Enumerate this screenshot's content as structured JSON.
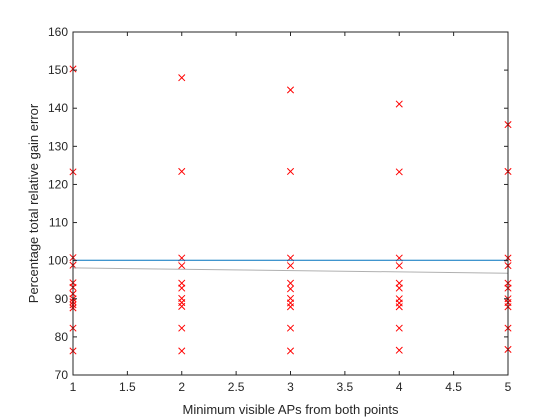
{
  "chart_data": {
    "type": "scatter",
    "title": "",
    "xlabel": "Minimum visible APs from both points",
    "ylabel": "Percentage total relative gain error",
    "xlim": [
      1,
      5
    ],
    "ylim": [
      70,
      160
    ],
    "xticks": [
      1,
      1.5,
      2,
      2.5,
      3,
      3.5,
      4,
      4.5,
      5
    ],
    "xtick_labels": [
      "1",
      "1.5",
      "2",
      "2.5",
      "3",
      "3.5",
      "4",
      "4.5",
      "5"
    ],
    "yticks": [
      70,
      80,
      90,
      100,
      110,
      120,
      130,
      140,
      150,
      160
    ],
    "ytick_labels": [
      "70",
      "80",
      "90",
      "100",
      "110",
      "120",
      "130",
      "140",
      "150",
      "160"
    ],
    "grid": false,
    "series": [
      {
        "marker": "x",
        "color": "#ff0000",
        "points": [
          [
            1,
            150.3
          ],
          [
            1,
            123.3
          ],
          [
            1,
            100.8
          ],
          [
            1,
            98.8
          ],
          [
            1,
            94.2
          ],
          [
            1,
            93.0
          ],
          [
            1,
            91.3
          ],
          [
            1,
            90.0
          ],
          [
            1,
            89.2
          ],
          [
            1,
            88.4
          ],
          [
            1,
            87.6
          ],
          [
            1,
            82.3
          ],
          [
            1,
            76.3
          ],
          [
            2,
            148.0
          ],
          [
            2,
            123.4
          ],
          [
            2,
            100.7
          ],
          [
            2,
            98.7
          ],
          [
            2,
            94.1
          ],
          [
            2,
            92.8
          ],
          [
            2,
            90.1
          ],
          [
            2,
            89.0
          ],
          [
            2,
            88.0
          ],
          [
            2,
            82.3
          ],
          [
            2,
            76.3
          ],
          [
            3,
            144.8
          ],
          [
            3,
            123.4
          ],
          [
            3,
            100.7
          ],
          [
            3,
            98.7
          ],
          [
            3,
            94.1
          ],
          [
            3,
            92.6
          ],
          [
            3,
            90.1
          ],
          [
            3,
            88.9
          ],
          [
            3,
            87.9
          ],
          [
            3,
            82.3
          ],
          [
            3,
            76.3
          ],
          [
            4,
            141.1
          ],
          [
            4,
            123.3
          ],
          [
            4,
            100.7
          ],
          [
            4,
            98.7
          ],
          [
            4,
            94.1
          ],
          [
            4,
            92.8
          ],
          [
            4,
            90.0
          ],
          [
            4,
            88.9
          ],
          [
            4,
            87.9
          ],
          [
            4,
            82.3
          ],
          [
            4,
            76.5
          ],
          [
            5,
            135.7
          ],
          [
            5,
            123.4
          ],
          [
            5,
            100.7
          ],
          [
            5,
            98.7
          ],
          [
            5,
            94.1
          ],
          [
            5,
            92.8
          ],
          [
            5,
            90.0
          ],
          [
            5,
            89.0
          ],
          [
            5,
            87.9
          ],
          [
            5,
            82.3
          ],
          [
            5,
            76.7
          ]
        ]
      },
      {
        "type": "line",
        "color": "#0072bd",
        "x": [
          1,
          5
        ],
        "y": [
          100.1,
          100.1
        ]
      },
      {
        "type": "line",
        "color": "#b0b0b0",
        "x": [
          1,
          5
        ],
        "y": [
          98.1,
          96.7
        ]
      }
    ]
  }
}
